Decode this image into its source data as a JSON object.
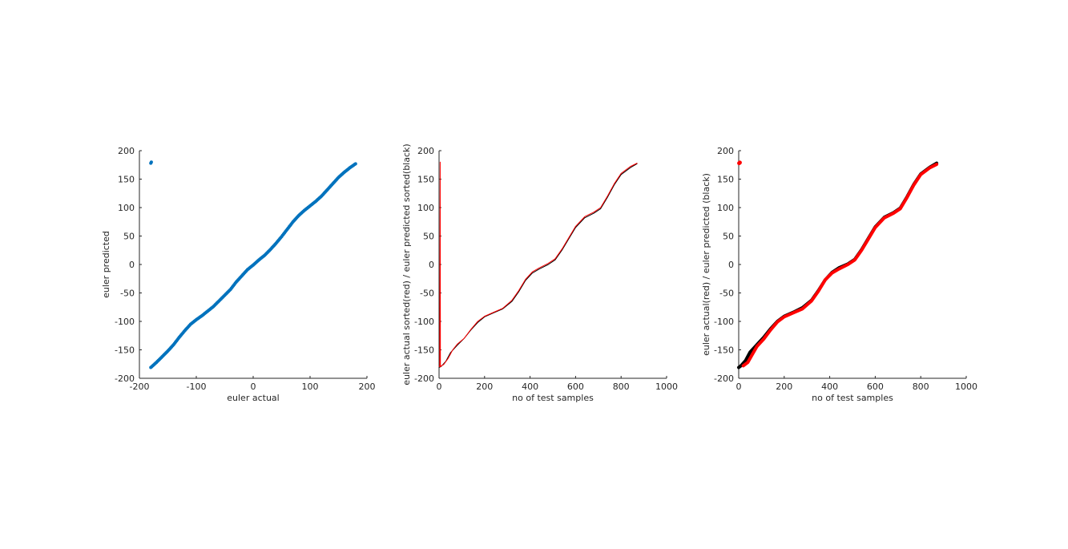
{
  "chart_data": [
    {
      "type": "scatter",
      "xlabel": "euler actual",
      "ylabel": "euler predicted",
      "xlim": [
        -200,
        200
      ],
      "ylim": [
        -200,
        200
      ],
      "xticks": [
        -200,
        -100,
        0,
        100,
        200
      ],
      "yticks": [
        -200,
        -150,
        -100,
        -50,
        0,
        50,
        100,
        150,
        200
      ],
      "grid": false,
      "series": [
        {
          "color": "#0072BD",
          "marker": "dot",
          "points": [
            [
              -180,
              -181
            ],
            [
              -170,
              -172
            ],
            [
              -160,
              -162
            ],
            [
              -150,
              -152
            ],
            [
              -140,
              -141
            ],
            [
              -130,
              -128
            ],
            [
              -120,
              -116
            ],
            [
              -110,
              -105
            ],
            [
              -100,
              -97
            ],
            [
              -90,
              -90
            ],
            [
              -80,
              -82
            ],
            [
              -70,
              -74
            ],
            [
              -60,
              -64
            ],
            [
              -50,
              -54
            ],
            [
              -40,
              -44
            ],
            [
              -30,
              -31
            ],
            [
              -20,
              -20
            ],
            [
              -10,
              -9
            ],
            [
              0,
              -1
            ],
            [
              10,
              8
            ],
            [
              20,
              16
            ],
            [
              30,
              26
            ],
            [
              40,
              37
            ],
            [
              50,
              49
            ],
            [
              60,
              62
            ],
            [
              70,
              75
            ],
            [
              80,
              86
            ],
            [
              90,
              95
            ],
            [
              100,
              103
            ],
            [
              110,
              111
            ],
            [
              120,
              120
            ],
            [
              130,
              131
            ],
            [
              140,
              142
            ],
            [
              150,
              153
            ],
            [
              160,
              162
            ],
            [
              170,
              170
            ],
            [
              180,
              177
            ],
            [
              -180,
              178
            ],
            [
              -179,
              180
            ]
          ]
        }
      ]
    },
    {
      "type": "line",
      "xlabel": "no of test samples",
      "ylabel": "euler actual sorted(red) / euler predicted sorted(black)",
      "xlim": [
        0,
        1000
      ],
      "ylim": [
        -200,
        200
      ],
      "xticks": [
        0,
        200,
        400,
        600,
        800,
        1000
      ],
      "yticks": [
        -200,
        -150,
        -100,
        -50,
        0,
        50,
        100,
        150,
        200
      ],
      "grid": false,
      "series": [
        {
          "color": "#000000",
          "x": [
            0,
            10,
            30,
            50,
            80,
            110,
            140,
            170,
            200,
            240,
            280,
            320,
            350,
            380,
            410,
            440,
            480,
            510,
            540,
            570,
            600,
            640,
            680,
            710,
            740,
            770,
            800,
            840,
            870
          ],
          "y": [
            -181,
            -179,
            -170,
            -155,
            -142,
            -130,
            -115,
            -102,
            -92,
            -85,
            -78,
            -65,
            -48,
            -28,
            -15,
            -8,
            0,
            8,
            25,
            45,
            65,
            82,
            90,
            98,
            118,
            140,
            158,
            170,
            177
          ]
        },
        {
          "color": "#FF0000",
          "x": [
            0,
            3,
            5,
            6,
            10,
            20,
            40,
            60,
            80,
            110,
            140,
            170,
            200,
            240,
            280,
            320,
            350,
            380,
            410,
            440,
            480,
            510,
            540,
            570,
            600,
            640,
            680,
            710,
            740,
            770,
            800,
            840,
            870
          ],
          "y": [
            -179,
            -179,
            180,
            -180,
            -178,
            -176,
            -165,
            -150,
            -140,
            -130,
            -114,
            -100,
            -91,
            -84,
            -77,
            -63,
            -46,
            -26,
            -13,
            -6,
            2,
            10,
            27,
            47,
            67,
            84,
            92,
            100,
            120,
            142,
            160,
            172,
            178
          ]
        }
      ]
    },
    {
      "type": "line",
      "xlabel": "no of test samples",
      "ylabel": "euler actual(red) / euler predicted (black)",
      "xlim": [
        0,
        1000
      ],
      "ylim": [
        -200,
        200
      ],
      "xticks": [
        0,
        200,
        400,
        600,
        800,
        1000
      ],
      "yticks": [
        -200,
        -150,
        -100,
        -50,
        0,
        50,
        100,
        150,
        200
      ],
      "grid": false,
      "series": [
        {
          "color": "#000000",
          "marker": "dot",
          "x": [
            0,
            10,
            30,
            50,
            80,
            110,
            140,
            170,
            200,
            240,
            280,
            320,
            350,
            380,
            410,
            440,
            480,
            510,
            540,
            570,
            600,
            640,
            680,
            710,
            740,
            770,
            800,
            840,
            870
          ],
          "y": [
            -181,
            -178,
            -169,
            -154,
            -141,
            -128,
            -113,
            -100,
            -91,
            -84,
            -76,
            -63,
            -46,
            -27,
            -14,
            -6,
            1,
            9,
            26,
            46,
            66,
            83,
            91,
            99,
            119,
            141,
            159,
            171,
            178
          ]
        },
        {
          "color": "#FF0000",
          "marker": "dot",
          "x": [
            20,
            40,
            60,
            80,
            110,
            140,
            170,
            200,
            240,
            280,
            320,
            350,
            380,
            410,
            440,
            480,
            510,
            540,
            570,
            600,
            640,
            680,
            710,
            740,
            770,
            800,
            840,
            870
          ],
          "y": [
            -178,
            -172,
            -158,
            -144,
            -131,
            -115,
            -101,
            -92,
            -85,
            -78,
            -64,
            -47,
            -27,
            -15,
            -8,
            0,
            8,
            25,
            45,
            65,
            82,
            90,
            98,
            118,
            140,
            158,
            170,
            176
          ],
          "extra_points": [
            [
              2,
              178
            ],
            [
              5,
              179
            ]
          ]
        }
      ]
    }
  ]
}
